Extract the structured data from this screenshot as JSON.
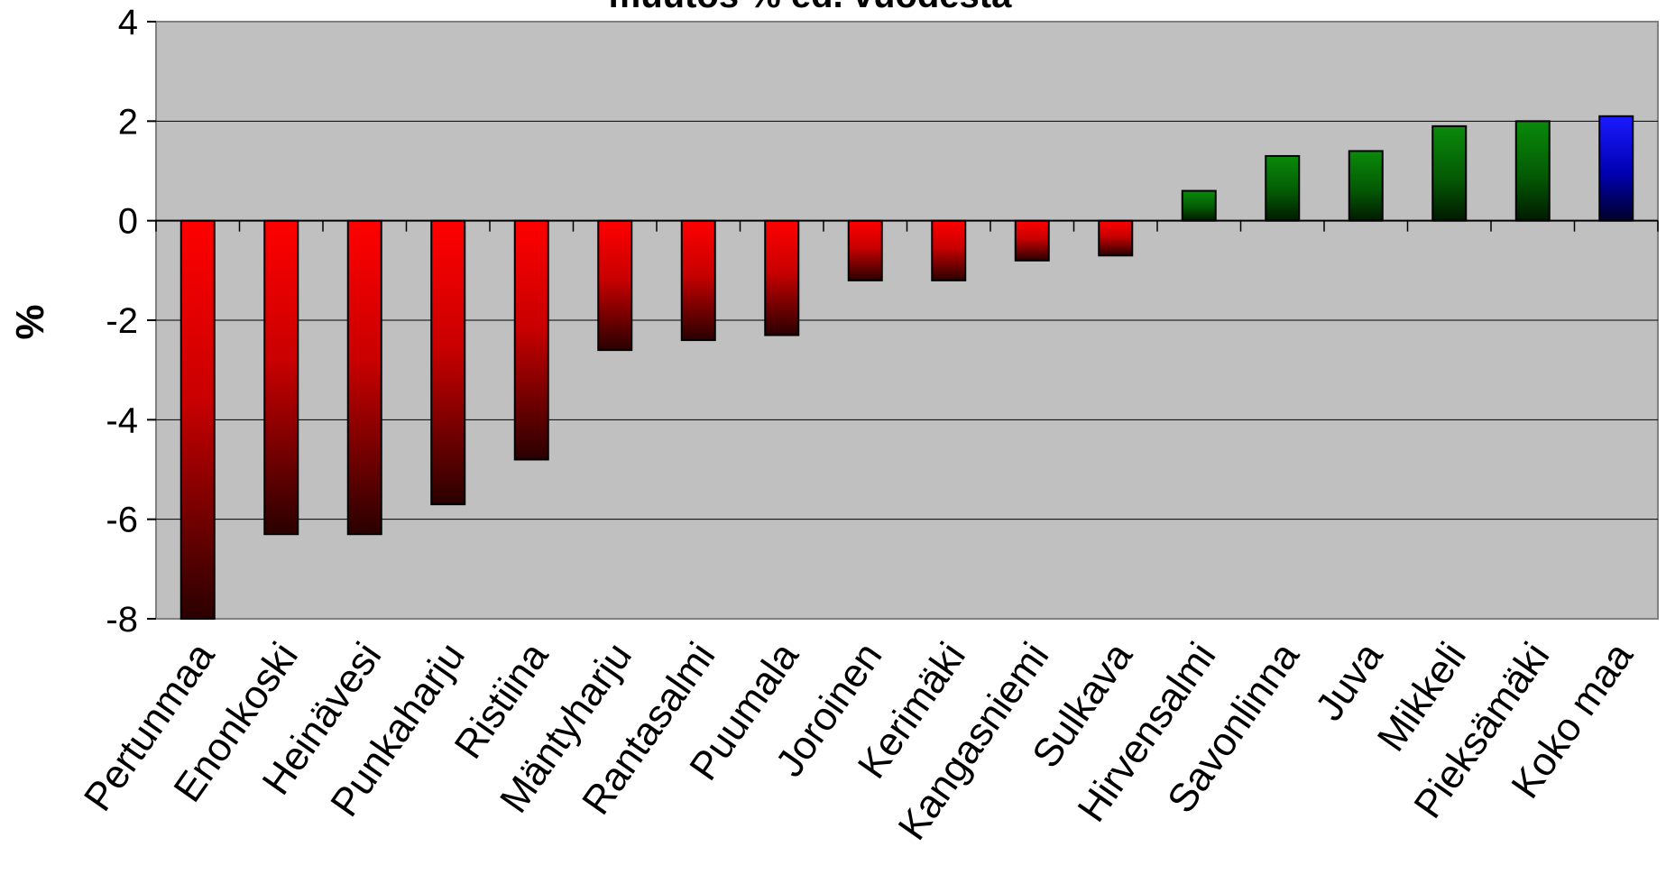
{
  "chart_data": {
    "type": "bar",
    "title": "muutos % ed. vuodesta",
    "ylabel": "%",
    "xlabel": "",
    "ylim": [
      -8,
      4
    ],
    "yticks": [
      4,
      2,
      0,
      -2,
      -4,
      -6,
      -8
    ],
    "grid": true,
    "categories": [
      "Pertunmaa",
      "Enonkoski",
      "Heinävesi",
      "Punkaharju",
      "Ristiina",
      "Mäntyharju",
      "Rantasalmi",
      "Puumala",
      "Joroinen",
      "Kerimäki",
      "Kangasniemi",
      "Sulkava",
      "Hirvensalmi",
      "Savonlinna",
      "Juva",
      "Mikkeli",
      "Pieksämäki",
      "Koko maa"
    ],
    "values": [
      -8.0,
      -6.3,
      -6.3,
      -5.7,
      -4.8,
      -2.6,
      -2.4,
      -2.3,
      -1.2,
      -1.2,
      -0.8,
      -0.7,
      0.6,
      1.3,
      1.4,
      1.9,
      2.0,
      2.1
    ],
    "colors": {
      "negative": "#ff0000",
      "positive": "#008000",
      "total": "#0000ff",
      "plot_background": "#c0c0c0"
    }
  }
}
